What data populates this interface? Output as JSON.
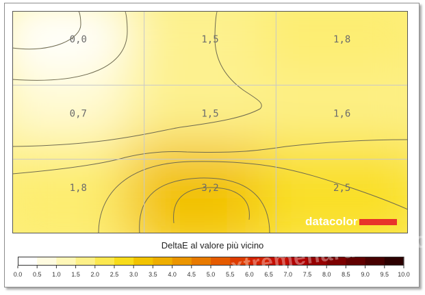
{
  "chart_data": {
    "type": "heatmap",
    "rows": 3,
    "cols": 3,
    "values": [
      [
        0.0,
        1.5,
        1.8
      ],
      [
        0.7,
        1.5,
        1.6
      ],
      [
        1.8,
        3.2,
        2.5
      ]
    ],
    "cell_labels": [
      [
        "0,0",
        "1,5",
        "1,8"
      ],
      [
        "0,7",
        "1,5",
        "1,6"
      ],
      [
        "1,8",
        "3,2",
        "2,5"
      ]
    ],
    "legend_title": "DeltaE al valore più vicino",
    "scale_ticks": [
      "0.0",
      "0.5",
      "1.0",
      "1.5",
      "2.0",
      "2.5",
      "3.0",
      "3.5",
      "4.0",
      "4.5",
      "5.0",
      "5.5",
      "6.0",
      "6.5",
      "7.0",
      "7.5",
      "8.0",
      "8.5",
      "9.0",
      "9.5",
      "10.0"
    ],
    "scale_colors": [
      "#ffffff",
      "#fffbe0",
      "#fff7b8",
      "#fdf088",
      "#fce84f",
      "#f8dc1a",
      "#f2c300",
      "#eeae00",
      "#eb9500",
      "#e87a00",
      "#e55b00",
      "#de3b00",
      "#d42000",
      "#c40d00",
      "#b00000",
      "#960000",
      "#7c0000",
      "#610000",
      "#470000",
      "#2c0000"
    ]
  },
  "brand": {
    "text": "datacolor",
    "bar_color": "#e8332a"
  },
  "watermark": "xtremehardware.com"
}
